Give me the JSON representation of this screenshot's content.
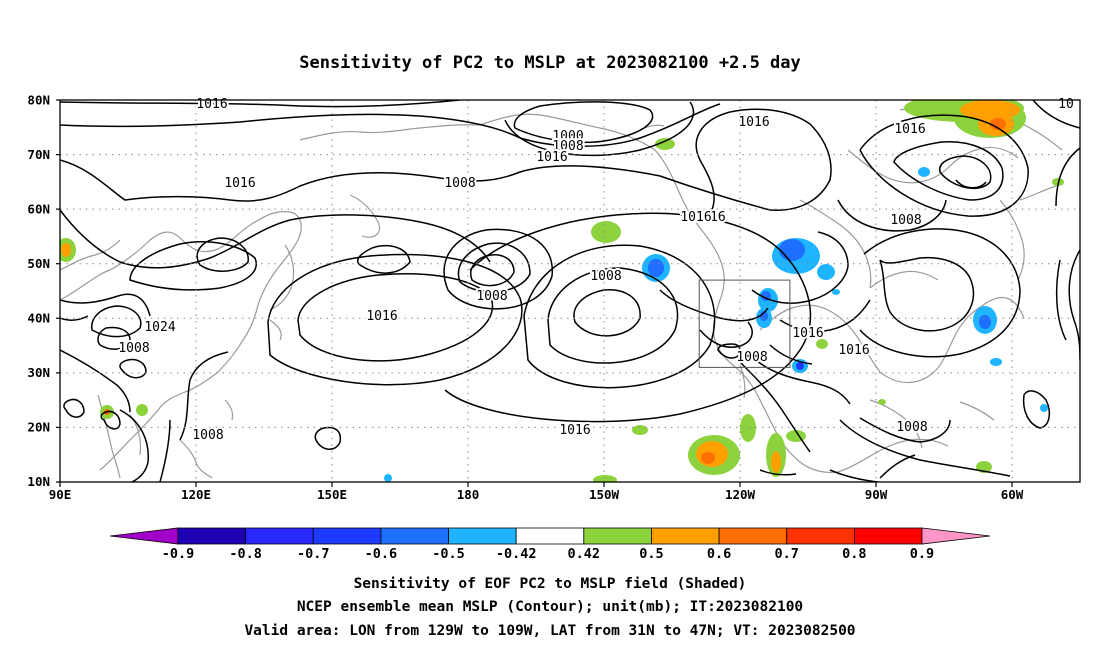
{
  "title": "Sensitivity of PC2 to MSLP at 2023082100 +2.5 day",
  "map": {
    "lat_ticks": [
      "80N",
      "70N",
      "60N",
      "50N",
      "40N",
      "30N",
      "20N",
      "10N"
    ],
    "lon_ticks": [
      "90E",
      "120E",
      "150E",
      "180",
      "150W",
      "120W",
      "90W",
      "60W"
    ],
    "grid": "dotted",
    "valid_area_box": {
      "lon": [
        "129W",
        "109W"
      ],
      "lat": [
        "31N",
        "47N"
      ]
    }
  },
  "contour_labels": [
    "1016",
    "1000",
    "1008",
    "1016",
    "1016",
    "1016",
    "1008",
    "1016",
    "1016",
    "1008",
    "1024",
    "1008",
    "1016",
    "1008",
    "1008",
    "1008",
    "1016",
    "1016",
    "1008",
    "1016",
    "1008",
    "1016",
    "10"
  ],
  "colorbar": {
    "labels": [
      "-0.9",
      "-0.8",
      "-0.7",
      "-0.6",
      "-0.5",
      "-0.42",
      "0.42",
      "0.5",
      "0.6",
      "0.7",
      "0.8",
      "0.9"
    ],
    "colors": [
      "#a000c8",
      "#1e00b4",
      "#2828ff",
      "#1e3cff",
      "#1e6eff",
      "#1eb4ff",
      "#ffffff",
      "#8cd23c",
      "#ffa000",
      "#ff6e00",
      "#ff3200",
      "#ff0000",
      "#ff96c8"
    ]
  },
  "footer": {
    "line1": "Sensitivity of EOF PC2 to MSLP field (Shaded)",
    "line2": "NCEP ensemble mean MSLP (Contour); unit(mb); IT:2023082100",
    "line3": "Valid area: LON from 129W to 109W, LAT from 31N to 47N; VT: 2023082500"
  }
}
